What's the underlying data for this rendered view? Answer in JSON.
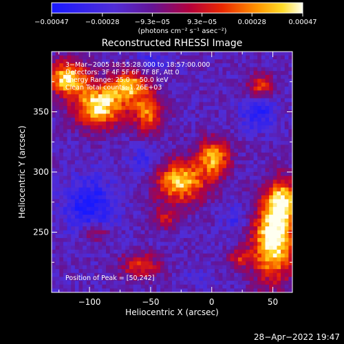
{
  "chart_data": {
    "type": "heatmap",
    "title": "Reconstructed RHESSI Image",
    "xlabel": "Heliocentric X (arcsec)",
    "ylabel": "Heliocentric Y (arcsec)",
    "xlim": [
      -131,
      66
    ],
    "ylim": [
      200,
      400
    ],
    "x_ticks": [
      {
        "value": -100,
        "label": "−100"
      },
      {
        "value": -50,
        "label": "−50"
      },
      {
        "value": 0,
        "label": "0"
      },
      {
        "value": 50,
        "label": "50"
      }
    ],
    "y_ticks": [
      {
        "value": 250,
        "label": "250"
      },
      {
        "value": 300,
        "label": "300"
      },
      {
        "value": 350,
        "label": "350"
      }
    ],
    "colorbar": {
      "min": -0.00047,
      "max": 0.00047,
      "tick_labels": [
        "−0.00047",
        "−0.00028",
        "−9.3e−05",
        "9.3e−05",
        "0.00028",
        "0.00047"
      ],
      "tick_values": [
        -0.00047,
        -0.00028,
        -9.3e-05,
        9.3e-05,
        0.00028,
        0.00047
      ],
      "units_line": "(photons cm⁻² s⁻¹ asec⁻²)"
    },
    "annotations": [
      "3−Mar−2005 18:55:28.000 to 18:57:00.000",
      "Detectors: 3F 4F 5F 6F 7F 8F, Att 0",
      "Energy Range: 25.0 − 50.0 keV",
      "Clean     Total counts: 1.26E+03"
    ],
    "peak_label": "Position of Peak = [50,242]",
    "peak": {
      "x": 50,
      "y": 242
    },
    "sources": [
      {
        "x": 50,
        "y": 242,
        "sx": 12,
        "sy": 22,
        "amp": 1.0
      },
      {
        "x": 58,
        "y": 275,
        "sx": 9,
        "sy": 14,
        "amp": 0.8
      },
      {
        "x": -118,
        "y": 378,
        "sx": 11,
        "sy": 10,
        "amp": 0.9
      },
      {
        "x": -92,
        "y": 355,
        "sx": 14,
        "sy": 12,
        "amp": 0.95
      },
      {
        "x": -68,
        "y": 372,
        "sx": 10,
        "sy": 9,
        "amp": 0.75
      },
      {
        "x": -52,
        "y": 350,
        "sx": 9,
        "sy": 12,
        "amp": 0.65
      },
      {
        "x": -25,
        "y": 292,
        "sx": 14,
        "sy": 12,
        "amp": 0.85
      },
      {
        "x": 2,
        "y": 312,
        "sx": 9,
        "sy": 11,
        "amp": 0.75
      },
      {
        "x": 40,
        "y": 372,
        "sx": 7,
        "sy": 7,
        "amp": 0.5
      },
      {
        "x": -58,
        "y": 222,
        "sx": 12,
        "sy": 8,
        "amp": 0.45
      },
      {
        "x": -95,
        "y": 250,
        "sx": 8,
        "sy": 6,
        "amp": 0.35
      },
      {
        "x": 22,
        "y": 228,
        "sx": 6,
        "sy": 6,
        "amp": 0.4
      },
      {
        "x": -38,
        "y": 262,
        "sx": 8,
        "sy": 7,
        "amp": 0.35
      }
    ],
    "negative_sources": [
      {
        "x": -100,
        "y": 272,
        "sx": 14,
        "sy": 16,
        "amp": 1.0
      },
      {
        "x": 38,
        "y": 348,
        "sx": 10,
        "sy": 9,
        "amp": 0.8
      },
      {
        "x": -55,
        "y": 310,
        "sx": 8,
        "sy": 9,
        "amp": 0.55
      },
      {
        "x": -50,
        "y": 392,
        "sx": 10,
        "sy": 6,
        "amp": 0.5
      },
      {
        "x": 20,
        "y": 262,
        "sx": 8,
        "sy": 8,
        "amp": 0.5
      },
      {
        "x": -10,
        "y": 212,
        "sx": 8,
        "sy": 5,
        "amp": 0.4
      }
    ]
  },
  "footer": {
    "timestamp": "28−Apr−2022 19:47"
  }
}
